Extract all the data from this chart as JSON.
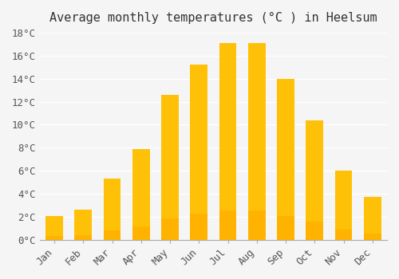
{
  "title": "Average monthly temperatures (°C ) in Heelsum",
  "months": [
    "Jan",
    "Feb",
    "Mar",
    "Apr",
    "May",
    "Jun",
    "Jul",
    "Aug",
    "Sep",
    "Oct",
    "Nov",
    "Dec"
  ],
  "values": [
    2.1,
    2.6,
    5.3,
    7.9,
    12.6,
    15.2,
    17.1,
    17.1,
    14.0,
    10.4,
    6.0,
    3.7
  ],
  "bar_color_top": "#FFC107",
  "bar_color_bottom": "#FFB300",
  "ylim": [
    0,
    18
  ],
  "yticks": [
    0,
    2,
    4,
    6,
    8,
    10,
    12,
    14,
    16,
    18
  ],
  "background_color": "#f5f5f5",
  "grid_color": "#ffffff",
  "title_fontsize": 11,
  "tick_fontsize": 9,
  "tick_font_family": "monospace"
}
